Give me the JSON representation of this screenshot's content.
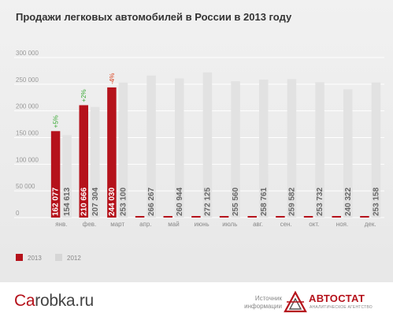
{
  "title": "Продажи легковых автомобилей в России в 2013 году",
  "chart_data": {
    "type": "bar",
    "categories": [
      "янв.",
      "фев.",
      "март",
      "апр.",
      "май",
      "июнь",
      "июль",
      "авг.",
      "сен.",
      "окт.",
      "ноя.",
      "дек."
    ],
    "series": [
      {
        "name": "2013",
        "color": "#b5121b",
        "values": [
          162077,
          210666,
          244030,
          null,
          null,
          null,
          null,
          null,
          null,
          null,
          null,
          null
        ],
        "labels": [
          "162 077",
          "210 666",
          "244 030"
        ]
      },
      {
        "name": "2012",
        "color": "#e2e2e2",
        "values": [
          154613,
          207304,
          253100,
          266267,
          260944,
          272125,
          255560,
          258761,
          259582,
          253732,
          240322,
          253158
        ],
        "labels": [
          "154 613",
          "207 304",
          "253 100",
          "266 267",
          "260 944",
          "272 125",
          "255 560",
          "258 761",
          "259 582",
          "253 732",
          "240 322",
          "253 158"
        ]
      }
    ],
    "changes": [
      {
        "category": "янв.",
        "label": "+5%",
        "color": "#3aaa35"
      },
      {
        "category": "фев.",
        "label": "+2%",
        "color": "#3aaa35"
      },
      {
        "category": "март",
        "label": "-4%",
        "color": "#d9421f"
      }
    ],
    "yticks": [
      "300 000",
      "250 000",
      "200 000",
      "150 000",
      "100 000",
      "50 000",
      "0"
    ],
    "ylim": [
      0,
      300000
    ],
    "grid": true,
    "legend_position": "bottom-left"
  },
  "footer": {
    "brand_prefix": "Ca",
    "brand_suffix": "robka.ru",
    "source_label": "Источник информации",
    "logo_name": "АВТОСТАТ",
    "logo_subtitle": "АНАЛИТИЧЕСКОЕ АГЕНТСТВО"
  }
}
